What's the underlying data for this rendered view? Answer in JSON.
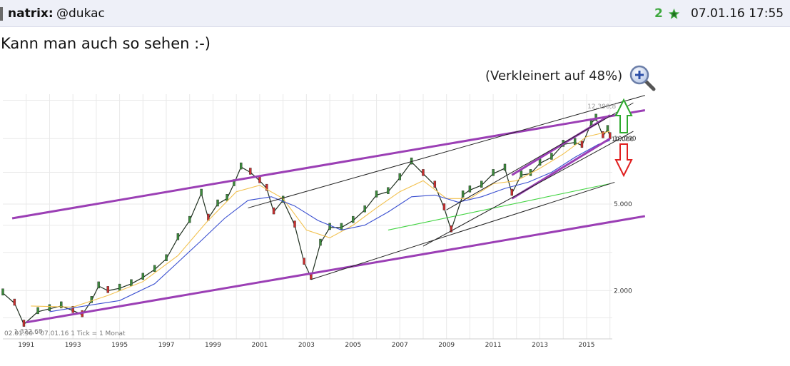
{
  "post": {
    "author": "natrix:",
    "mention": "@dukac",
    "stars": "2",
    "timestamp": "07.01.16 17:55",
    "text": "Kann man auch so sehen :-)",
    "scale_note": "(Verkleinert auf 48%)"
  },
  "icons": {
    "star": "star-icon",
    "zoom": "magnifier-plus-icon",
    "up_arrow": "arrow-up-outline-icon",
    "down_arrow": "arrow-down-outline-icon"
  },
  "colors": {
    "star": "#3fa83f",
    "channel": "#9b3fb5",
    "trend": "#222222",
    "ma_fast": "#f2c14e",
    "ma_slow": "#3a4fd0",
    "ma_long": "#43d443",
    "up_arrow": "#2eaa2e",
    "down_arrow": "#e02020"
  },
  "chart_data": {
    "type": "line",
    "scale": "log",
    "x_ticks": [
      "1991",
      "1993",
      "1995",
      "1997",
      "1999",
      "2001",
      "2003",
      "2005",
      "2007",
      "2009",
      "2011",
      "2013",
      "2015"
    ],
    "y_ticks": [
      "2.000",
      "5.000",
      "10.000"
    ],
    "annotations": {
      "high": "12.390,8",
      "low": "1.322,68",
      "current": "10.000"
    },
    "footer": "02.01.90 – 07.01.16  1 Tick = 1 Monat",
    "ylim": [
      1200,
      16000
    ],
    "series": [
      {
        "values": [
          [
            1990.0,
            1950
          ],
          [
            1990.5,
            1750
          ],
          [
            1990.9,
            1400
          ],
          [
            1991.5,
            1600
          ],
          [
            1992.0,
            1650
          ],
          [
            1992.5,
            1700
          ],
          [
            1993.0,
            1620
          ],
          [
            1993.4,
            1550
          ],
          [
            1993.8,
            1800
          ],
          [
            1994.1,
            2100
          ],
          [
            1994.5,
            2000
          ],
          [
            1995.0,
            2050
          ],
          [
            1995.5,
            2150
          ],
          [
            1996.0,
            2300
          ],
          [
            1996.5,
            2500
          ],
          [
            1997.0,
            2800
          ],
          [
            1997.5,
            3500
          ],
          [
            1998.0,
            4200
          ],
          [
            1998.5,
            5600
          ],
          [
            1998.8,
            4300
          ],
          [
            1999.2,
            5000
          ],
          [
            1999.6,
            5300
          ],
          [
            1999.9,
            6200
          ],
          [
            2000.2,
            7400
          ],
          [
            2000.6,
            7000
          ],
          [
            2001.0,
            6400
          ],
          [
            2001.3,
            5900
          ],
          [
            2001.6,
            4600
          ],
          [
            2002.0,
            5200
          ],
          [
            2002.5,
            4000
          ],
          [
            2002.9,
            2700
          ],
          [
            2003.2,
            2300
          ],
          [
            2003.6,
            3300
          ],
          [
            2004.0,
            3900
          ],
          [
            2004.5,
            3900
          ],
          [
            2005.0,
            4200
          ],
          [
            2005.5,
            4700
          ],
          [
            2006.0,
            5500
          ],
          [
            2006.5,
            5700
          ],
          [
            2007.0,
            6600
          ],
          [
            2007.5,
            7800
          ],
          [
            2008.0,
            6900
          ],
          [
            2008.5,
            6100
          ],
          [
            2008.9,
            4800
          ],
          [
            2009.2,
            3800
          ],
          [
            2009.7,
            5500
          ],
          [
            2010.0,
            5800
          ],
          [
            2010.5,
            6100
          ],
          [
            2011.0,
            6900
          ],
          [
            2011.5,
            7300
          ],
          [
            2011.8,
            5600
          ],
          [
            2012.2,
            6800
          ],
          [
            2012.6,
            6900
          ],
          [
            2013.0,
            7700
          ],
          [
            2013.5,
            8200
          ],
          [
            2014.0,
            9400
          ],
          [
            2014.5,
            9600
          ],
          [
            2014.8,
            9300
          ],
          [
            2015.2,
            11800
          ],
          [
            2015.4,
            12390
          ],
          [
            2015.7,
            10300
          ],
          [
            2015.9,
            11000
          ],
          [
            2016.0,
            10200
          ]
        ]
      },
      {
        "values": [
          [
            1991.2,
            1700
          ],
          [
            1993.0,
            1680
          ],
          [
            1994.5,
            1900
          ],
          [
            1996.0,
            2200
          ],
          [
            1997.5,
            2900
          ],
          [
            1998.7,
            4100
          ],
          [
            2000.0,
            5700
          ],
          [
            2001.0,
            6100
          ],
          [
            2002.0,
            5300
          ],
          [
            2003.0,
            3800
          ],
          [
            2004.0,
            3500
          ],
          [
            2005.0,
            4000
          ],
          [
            2006.0,
            4800
          ],
          [
            2007.0,
            5700
          ],
          [
            2008.0,
            6400
          ],
          [
            2009.0,
            5300
          ],
          [
            2010.0,
            5300
          ],
          [
            2011.0,
            6200
          ],
          [
            2012.0,
            6400
          ],
          [
            2013.0,
            7300
          ],
          [
            2014.0,
            8500
          ],
          [
            2015.0,
            10200
          ],
          [
            2016.0,
            10800
          ]
        ]
      },
      {
        "values": [
          [
            1992.0,
            1600
          ],
          [
            1993.5,
            1700
          ],
          [
            1995.0,
            1800
          ],
          [
            1996.5,
            2150
          ],
          [
            1997.5,
            2700
          ],
          [
            1998.5,
            3400
          ],
          [
            1999.5,
            4300
          ],
          [
            2000.5,
            5200
          ],
          [
            2001.5,
            5400
          ],
          [
            2002.5,
            4900
          ],
          [
            2003.5,
            4200
          ],
          [
            2004.5,
            3800
          ],
          [
            2005.5,
            4000
          ],
          [
            2006.5,
            4600
          ],
          [
            2007.5,
            5400
          ],
          [
            2008.5,
            5500
          ],
          [
            2009.5,
            5100
          ],
          [
            2010.5,
            5400
          ],
          [
            2011.5,
            5900
          ],
          [
            2012.5,
            6300
          ],
          [
            2013.5,
            7000
          ],
          [
            2014.5,
            8200
          ],
          [
            2015.5,
            9400
          ],
          [
            2016.0,
            9800
          ]
        ]
      },
      {
        "values": [
          [
            2006.5,
            3800
          ],
          [
            2016.0,
            6200
          ]
        ]
      }
    ],
    "channels": [
      {
        "from": [
          1990.4,
          4300
        ],
        "to": [
          2017.5,
          13500
        ]
      },
      {
        "from": [
          1991.0,
          1430
        ],
        "to": [
          2017.5,
          4400
        ]
      },
      {
        "from": [
          2011.8,
          5300
        ],
        "to": [
          2016.0,
          10000
        ]
      },
      {
        "from": [
          2011.8,
          6800
        ],
        "to": [
          2016.0,
          12800
        ]
      }
    ],
    "trendlines": [
      {
        "from": [
          2000.5,
          4800
        ],
        "to": [
          2017.5,
          15800
        ]
      },
      {
        "from": [
          2003.2,
          2250
        ],
        "to": [
          2016.2,
          6300
        ]
      },
      {
        "from": [
          2008.0,
          3200
        ],
        "to": [
          2017.0,
          10800
        ]
      },
      {
        "from": [
          2009.0,
          4700
        ],
        "to": [
          2017.0,
          14600
        ]
      }
    ]
  }
}
